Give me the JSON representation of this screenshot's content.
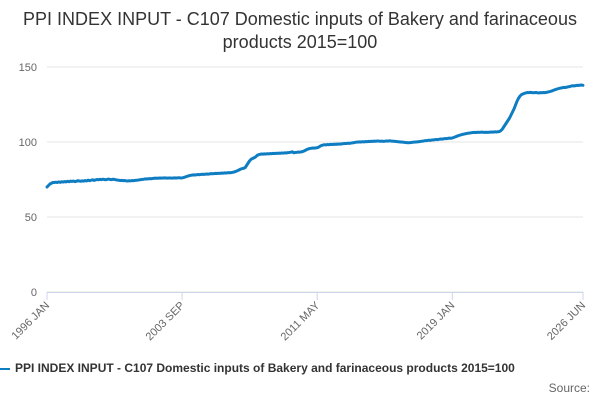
{
  "chart_data": {
    "type": "line",
    "title": "PPI INDEX INPUT - C107 Domestic inputs of Bakery and farinaceous products 2015=100",
    "source": "Source:",
    "categories": [
      "1996 JAN",
      null,
      null,
      null,
      null,
      null,
      null,
      null,
      null,
      null,
      null,
      null,
      null,
      null,
      null,
      null,
      null,
      null,
      null,
      null,
      null,
      null,
      null,
      null,
      null,
      null,
      null,
      null,
      null,
      null,
      null,
      null,
      null,
      null,
      null,
      null,
      null,
      null,
      null,
      null,
      null,
      null,
      null,
      null,
      null,
      null,
      null,
      null,
      null,
      null,
      null,
      null,
      null,
      null,
      null,
      null,
      null,
      null,
      null,
      null,
      null,
      null,
      null,
      null,
      null,
      null,
      null,
      null,
      null,
      null,
      null,
      null,
      null,
      null,
      null,
      null,
      null,
      null,
      null,
      null,
      null,
      null,
      null,
      null,
      null,
      null,
      null,
      null,
      null,
      null,
      null,
      null,
      "2003 SEP",
      null,
      null,
      null,
      null,
      null,
      null,
      null,
      null,
      null,
      null,
      null,
      null,
      null,
      null,
      null,
      null,
      null,
      null,
      null,
      null,
      null,
      null,
      null,
      null,
      null,
      null,
      null,
      null,
      null,
      null,
      null,
      null,
      null,
      null,
      null,
      null,
      null,
      null,
      null,
      null,
      null,
      null,
      null,
      null,
      null,
      null,
      null,
      null,
      null,
      null,
      null,
      null,
      null,
      null,
      null,
      null,
      null,
      null,
      null,
      null,
      null,
      null,
      null,
      null,
      null,
      null,
      null,
      null,
      null,
      null,
      null,
      null,
      null,
      null,
      null,
      null,
      null,
      null,
      null,
      null,
      null,
      null,
      null,
      null,
      null,
      null,
      null,
      null,
      null,
      null,
      null,
      "2011 MAY",
      null,
      null,
      null,
      null,
      null,
      null,
      null,
      null,
      null,
      null,
      null,
      null,
      null,
      null,
      null,
      null,
      null,
      null,
      null,
      null,
      null,
      null,
      null,
      null,
      null,
      null,
      null,
      null,
      null,
      null,
      null,
      null,
      null,
      null,
      null,
      null,
      null,
      null,
      null,
      null,
      null,
      null,
      null,
      null,
      null,
      null,
      null,
      null,
      null,
      null,
      null,
      null,
      null,
      null,
      null,
      null,
      null,
      null,
      null,
      null,
      null,
      null,
      null,
      null,
      null,
      null,
      null,
      null,
      null,
      null,
      null,
      null,
      null,
      null,
      null,
      null,
      null,
      null,
      null,
      null,
      null,
      null,
      null,
      null,
      null,
      null,
      null,
      null,
      null,
      null,
      null,
      "2019 JAN",
      null,
      null,
      null,
      null,
      null,
      null,
      null,
      null,
      null,
      null,
      null,
      null,
      null,
      null,
      null,
      null,
      null,
      null,
      null,
      null,
      null,
      null,
      null,
      null,
      null,
      null,
      null,
      null,
      null,
      null,
      null,
      null,
      null,
      null,
      null,
      null,
      null,
      null,
      null,
      null,
      null,
      null,
      null,
      null,
      null,
      null,
      null,
      null,
      null,
      null,
      null,
      null,
      null,
      null,
      null,
      null,
      null,
      null,
      null,
      null,
      null,
      null,
      null,
      null,
      null,
      null,
      null,
      null,
      null,
      null,
      null,
      null,
      null,
      null,
      null,
      null,
      null,
      null,
      null,
      null,
      null,
      null,
      null,
      null,
      null,
      null,
      null,
      null,
      "2026 JUN"
    ],
    "series": [
      {
        "name": "PPI INDEX INPUT - C107 Domestic inputs of Bakery and farinaceous products 2015=100",
        "color": "#0f7dc2",
        "values": [
          70,
          71,
          72,
          72.5,
          73,
          73,
          73.2,
          73,
          73.4,
          73.1,
          73.5,
          73.3,
          73.6,
          73.4,
          73.8,
          73.5,
          73.9,
          73.7,
          74,
          73.6,
          73.8,
          74.2,
          74,
          73.8,
          74.1,
          73.9,
          74.3,
          74,
          74.6,
          74.2,
          74.5,
          74.8,
          74.4,
          74.7,
          75,
          74.8,
          75.1,
          74.9,
          75.2,
          75,
          74.8,
          75.1,
          75.3,
          75,
          74.9,
          75.2,
          75,
          74.8,
          74.6,
          74.5,
          74.3,
          74.4,
          74.2,
          74.3,
          74.1,
          74,
          74.2,
          74.1,
          74.3,
          74.2,
          74.4,
          74.5,
          74.6,
          74.8,
          74.9,
          75.1,
          75.2,
          75.4,
          75.3,
          75.5,
          75.6,
          75.5,
          75.7,
          75.8,
          75.9,
          75.8,
          75.9,
          76,
          75.9,
          76,
          76.1,
          76,
          75.9,
          76,
          76,
          75.9,
          76,
          76.1,
          76,
          76.1,
          76.2,
          76,
          76.1,
          76.3,
          76.6,
          77,
          77.3,
          77.6,
          77.8,
          78,
          78.1,
          78,
          78.2,
          78.3,
          78.2,
          78.4,
          78.5,
          78.4,
          78.6,
          78.7,
          78.6,
          78.8,
          78.9,
          78.8,
          79,
          79.1,
          79,
          79.2,
          79.1,
          79.3,
          79.2,
          79.4,
          79.3,
          79.5,
          79.6,
          79.5,
          79.7,
          79.9,
          80.2,
          80.6,
          81,
          81.5,
          82,
          82.3,
          82.5,
          83,
          84.5,
          86,
          87.5,
          88.5,
          89,
          89.5,
          90,
          91,
          91.5,
          91.8,
          92,
          91.9,
          92.1,
          92,
          92.2,
          92.1,
          92.3,
          92.2,
          92.4,
          92.3,
          92.5,
          92.4,
          92.6,
          92.5,
          92.7,
          92.6,
          92.8,
          92.7,
          92.9,
          93,
          93.2,
          93.5,
          92.8,
          93,
          93.1,
          93.3,
          93.2,
          93.4,
          93.6,
          94,
          94.5,
          95,
          95.4,
          95.7,
          95.8,
          96,
          95.9,
          96.1,
          96.2,
          96.6,
          97.2,
          97.7,
          98,
          98.2,
          98.1,
          98.3,
          98.2,
          98.4,
          98.3,
          98.5,
          98.4,
          98.6,
          98.5,
          98.7,
          98.6,
          98.8,
          98.9,
          99,
          99,
          99.2,
          99.1,
          99.3,
          99.4,
          99.6,
          99.8,
          99.9,
          100,
          100.1,
          100,
          100.2,
          100.1,
          100.3,
          100.2,
          100.4,
          100.3,
          100.5,
          100.4,
          100.6,
          100.5,
          100.7,
          100.6,
          100.5,
          100.6,
          100.4,
          100.5,
          100.7,
          100.6,
          100.8,
          100.7,
          100.6,
          100.5,
          100.4,
          100.3,
          100.2,
          100.1,
          100,
          99.9,
          99.8,
          99.7,
          99.6,
          99.5,
          99.6,
          99.7,
          99.8,
          99.9,
          100,
          100.1,
          100.2,
          100.3,
          100.5,
          100.6,
          100.8,
          100.9,
          101,
          101.2,
          101.1,
          101.3,
          101.4,
          101.5,
          101.7,
          101.6,
          101.8,
          102,
          101.9,
          102.1,
          102.3,
          102.2,
          102.4,
          102.6,
          102.5,
          102.7,
          103,
          103.4,
          103.8,
          104.2,
          104.5,
          104.8,
          105.1,
          105.3,
          105.5,
          105.7,
          105.9,
          106,
          106.2,
          106.3,
          106.4,
          106.3,
          106.5,
          106.4,
          106.5,
          106.6,
          106.5,
          106.4,
          106.5,
          106.4,
          106.5,
          106.6,
          106.7,
          106.6,
          106.8,
          106.7,
          106.8,
          107,
          107.5,
          108.5,
          110,
          111.5,
          113,
          114.5,
          116,
          118,
          120,
          122,
          124.5,
          127,
          129,
          130.5,
          131.5,
          132,
          132.4,
          132.7,
          133,
          132.9,
          133.1,
          133,
          132.8,
          132.9,
          133,
          132.8,
          132.7,
          132.9,
          132.8,
          133,
          132.9,
          133.1,
          133.3,
          133.5,
          133.8,
          134.1,
          134.5,
          134.9,
          135.2,
          135.5,
          135.8,
          136,
          136.2,
          136.4,
          136.3,
          136.6,
          136.8,
          137,
          137.3,
          137.5,
          137.4,
          137.6,
          137.8,
          137.7,
          137.9,
          138,
          137.8
        ]
      }
    ],
    "ylim": [
      0,
      150
    ],
    "yticks": [
      0,
      50,
      100,
      150
    ],
    "grid": true
  }
}
